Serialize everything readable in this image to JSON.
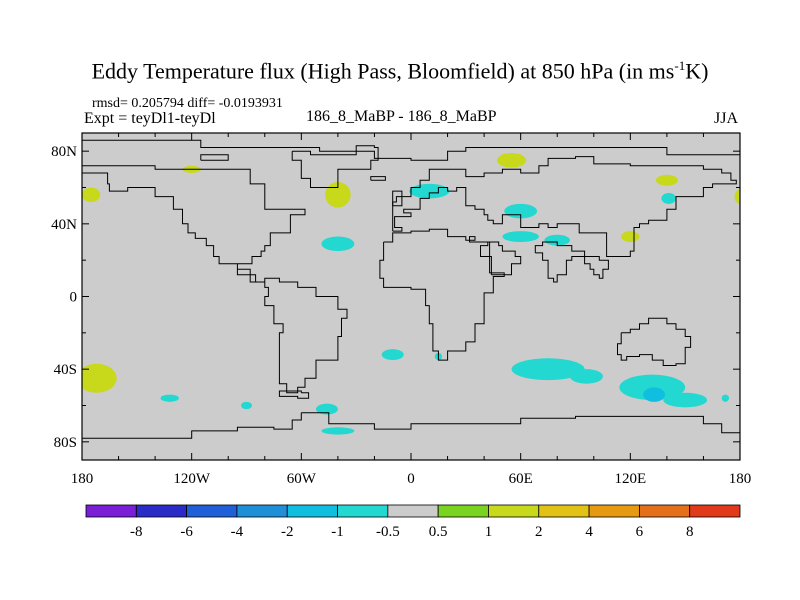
{
  "header": {
    "title_main": "Eddy Temperature flux (High Pass, Bloomfield) at 850 hPa (in ms",
    "title_sup": "-1",
    "title_end": "K)",
    "stats": "rmsd= 0.205794 diff= -0.0193931",
    "expt": "Expt = teyDl1-teyDl",
    "runs": "186_8_MaBP - 186_8_MaBP",
    "season": "JJA"
  },
  "chart_data": {
    "type": "contour-map",
    "title": "Eddy Temperature flux (High Pass, Bloomfield) at 850 hPa (in ms-1K)",
    "projection": "cylindrical-equidistant",
    "xlim": [
      -180,
      180
    ],
    "ylim": [
      -90,
      90
    ],
    "x_ticks": [
      {
        "value": -180,
        "label": "180"
      },
      {
        "value": -120,
        "label": "120W"
      },
      {
        "value": -60,
        "label": "60W"
      },
      {
        "value": 0,
        "label": "0"
      },
      {
        "value": 60,
        "label": "60E"
      },
      {
        "value": 120,
        "label": "120E"
      },
      {
        "value": 180,
        "label": "180"
      }
    ],
    "y_ticks": [
      {
        "value": 80,
        "label": "80N"
      },
      {
        "value": 40,
        "label": "40N"
      },
      {
        "value": 0,
        "label": "0"
      },
      {
        "value": -40,
        "label": "40S"
      },
      {
        "value": -80,
        "label": "80S"
      }
    ],
    "colorbar": {
      "colors": [
        "#7a1fd6",
        "#2b2bc8",
        "#1f5fd8",
        "#1f8fd8",
        "#10bfe0",
        "#22d8d0",
        "#cccccc",
        "#7ad31f",
        "#c8d81a",
        "#e2c215",
        "#e59a12",
        "#e5701a",
        "#e03a1a"
      ],
      "labels": [
        "-8",
        "-6",
        "-4",
        "-2",
        "-1",
        "-0.5",
        "0.5",
        "1",
        "2",
        "4",
        "6",
        "8"
      ]
    },
    "background_color": "#cccccc",
    "anomaly_patches": [
      {
        "lon": 55,
        "lat": 75,
        "rlon": 8,
        "rlat": 4,
        "level": "1"
      },
      {
        "lon": -120,
        "lat": 70,
        "rlon": 5,
        "rlat": 2,
        "level": "1"
      },
      {
        "lon": -175,
        "lat": 56,
        "rlon": 5,
        "rlat": 4,
        "level": "1"
      },
      {
        "lon": -40,
        "lat": 56,
        "rlon": 7,
        "rlat": 7,
        "level": "1"
      },
      {
        "lon": 10,
        "lat": 58,
        "rlon": 11,
        "rlat": 4,
        "level": "-0.5"
      },
      {
        "lon": 60,
        "lat": 47,
        "rlon": 9,
        "rlat": 4,
        "level": "-0.5"
      },
      {
        "lon": 60,
        "lat": 33,
        "rlon": 10,
        "rlat": 3,
        "level": "-0.5"
      },
      {
        "lon": 80,
        "lat": 31,
        "rlon": 7,
        "rlat": 3,
        "level": "-0.5"
      },
      {
        "lon": -40,
        "lat": 29,
        "rlon": 9,
        "rlat": 4,
        "level": "-0.5"
      },
      {
        "lon": 140,
        "lat": 64,
        "rlon": 6,
        "rlat": 3,
        "level": "1"
      },
      {
        "lon": 141,
        "lat": 54,
        "rlon": 4,
        "rlat": 3,
        "level": "-0.5"
      },
      {
        "lon": 120,
        "lat": 33,
        "rlon": 5,
        "rlat": 3,
        "level": "1"
      },
      {
        "lon": 180,
        "lat": 55,
        "rlon": 3,
        "rlat": 4,
        "level": "1"
      },
      {
        "lon": -172,
        "lat": -45,
        "rlon": 11,
        "rlat": 8,
        "level": "1"
      },
      {
        "lon": -10,
        "lat": -32,
        "rlon": 6,
        "rlat": 3,
        "level": "-0.5"
      },
      {
        "lon": 15,
        "lat": -33,
        "rlon": 2,
        "rlat": 2,
        "level": "-0.5"
      },
      {
        "lon": 75,
        "lat": -40,
        "rlon": 20,
        "rlat": 6,
        "level": "-0.5"
      },
      {
        "lon": 96,
        "lat": -44,
        "rlon": 9,
        "rlat": 4,
        "level": "-0.5"
      },
      {
        "lon": 132,
        "lat": -50,
        "rlon": 18,
        "rlat": 7,
        "level": "-0.5"
      },
      {
        "lon": 150,
        "lat": -57,
        "rlon": 12,
        "rlat": 4,
        "level": "-0.5"
      },
      {
        "lon": 133,
        "lat": -54,
        "rlon": 6,
        "rlat": 4,
        "level": "-1"
      },
      {
        "lon": -132,
        "lat": -56,
        "rlon": 5,
        "rlat": 2,
        "level": "-0.5"
      },
      {
        "lon": -90,
        "lat": -60,
        "rlon": 3,
        "rlat": 2,
        "level": "-0.5"
      },
      {
        "lon": -46,
        "lat": -62,
        "rlon": 6,
        "rlat": 3,
        "level": "-0.5"
      },
      {
        "lon": -40,
        "lat": -74,
        "rlon": 9,
        "rlat": 2,
        "level": "-0.5"
      },
      {
        "lon": 172,
        "lat": -56,
        "rlon": 2,
        "rlat": 2,
        "level": "-0.5"
      }
    ],
    "outlines": [
      [
        [
          -180,
          86
        ],
        [
          -115,
          86
        ],
        [
          -115,
          82
        ],
        [
          -60,
          82
        ],
        [
          -50,
          80
        ],
        [
          -20,
          76
        ],
        [
          0,
          75
        ],
        [
          20,
          80
        ],
        [
          30,
          82
        ],
        [
          90,
          82
        ],
        [
          140,
          78
        ],
        [
          180,
          75
        ]
      ],
      [
        [
          -180,
          72
        ],
        [
          -150,
          72
        ],
        [
          -140,
          70
        ],
        [
          -110,
          70
        ],
        [
          -95,
          70
        ],
        [
          -88,
          62
        ],
        [
          -80,
          58
        ],
        [
          -80,
          48
        ],
        [
          -65,
          48
        ],
        [
          -58,
          45
        ],
        [
          -66,
          35
        ],
        [
          -77,
          28
        ],
        [
          -80,
          25
        ],
        [
          -82,
          22
        ],
        [
          -87,
          18
        ],
        [
          -95,
          15
        ],
        [
          -88,
          8
        ],
        [
          -80,
          5
        ],
        [
          -78,
          0
        ],
        [
          -80,
          -5
        ],
        [
          -75,
          -15
        ],
        [
          -70,
          -20
        ],
        [
          -72,
          -35
        ],
        [
          -72,
          -48
        ],
        [
          -68,
          -53
        ],
        [
          -62,
          -50
        ],
        [
          -58,
          -45
        ],
        [
          -52,
          -35
        ],
        [
          -40,
          -22
        ],
        [
          -38,
          -12
        ],
        [
          -35,
          -7
        ],
        [
          -40,
          0
        ],
        [
          -52,
          5
        ],
        [
          -62,
          8
        ],
        [
          -72,
          10
        ],
        [
          -80,
          8
        ],
        [
          -85,
          12
        ],
        [
          -95,
          18
        ],
        [
          -105,
          22
        ],
        [
          -108,
          28
        ],
        [
          -112,
          32
        ],
        [
          -118,
          35
        ],
        [
          -122,
          40
        ],
        [
          -125,
          48
        ],
        [
          -130,
          55
        ],
        [
          -140,
          60
        ],
        [
          -155,
          58
        ],
        [
          -165,
          62
        ],
        [
          -166,
          68
        ],
        [
          -180,
          70
        ]
      ],
      [
        [
          -10,
          36
        ],
        [
          -5,
          38
        ],
        [
          -9,
          44
        ],
        [
          0,
          46
        ],
        [
          -4,
          48
        ],
        [
          5,
          52
        ],
        [
          5,
          54
        ],
        [
          10,
          57
        ],
        [
          15,
          60
        ],
        [
          20,
          58
        ],
        [
          25,
          60
        ],
        [
          30,
          58
        ],
        [
          30,
          50
        ],
        [
          35,
          48
        ],
        [
          40,
          45
        ],
        [
          42,
          42
        ],
        [
          45,
          40
        ],
        [
          50,
          45
        ],
        [
          60,
          40
        ],
        [
          60,
          38
        ],
        [
          70,
          40
        ],
        [
          75,
          38
        ],
        [
          80,
          40
        ],
        [
          92,
          35
        ],
        [
          100,
          35
        ],
        [
          107,
          22
        ],
        [
          115,
          22
        ],
        [
          120,
          25
        ],
        [
          122,
          32
        ],
        [
          122,
          38
        ],
        [
          125,
          40
        ],
        [
          130,
          42
        ],
        [
          140,
          48
        ],
        [
          145,
          55
        ],
        [
          160,
          60
        ],
        [
          165,
          62
        ],
        [
          178,
          64
        ],
        [
          175,
          68
        ],
        [
          170,
          70
        ],
        [
          160,
          72
        ],
        [
          140,
          72
        ],
        [
          120,
          73
        ],
        [
          100,
          77
        ],
        [
          90,
          76
        ],
        [
          75,
          72
        ],
        [
          70,
          68
        ],
        [
          60,
          70
        ],
        [
          50,
          68
        ],
        [
          40,
          66
        ],
        [
          30,
          70
        ],
        [
          20,
          70
        ],
        [
          10,
          64
        ],
        [
          5,
          60
        ],
        [
          0,
          55
        ],
        [
          -8,
          52
        ],
        [
          -10,
          45
        ],
        [
          -10,
          36
        ]
      ],
      [
        [
          -15,
          30
        ],
        [
          -10,
          35
        ],
        [
          0,
          36
        ],
        [
          10,
          37
        ],
        [
          20,
          33
        ],
        [
          30,
          31
        ],
        [
          35,
          33
        ],
        [
          32,
          30
        ],
        [
          43,
          13
        ],
        [
          51,
          11
        ],
        [
          45,
          2
        ],
        [
          40,
          -5
        ],
        [
          40,
          -15
        ],
        [
          35,
          -25
        ],
        [
          30,
          -30
        ],
        [
          20,
          -35
        ],
        [
          15,
          -30
        ],
        [
          12,
          -15
        ],
        [
          10,
          -5
        ],
        [
          8,
          4
        ],
        [
          0,
          5
        ],
        [
          -8,
          5
        ],
        [
          -15,
          10
        ],
        [
          -17,
          20
        ],
        [
          -15,
          30
        ]
      ],
      [
        [
          44,
          12
        ],
        [
          55,
          18
        ],
        [
          60,
          22
        ],
        [
          57,
          25
        ],
        [
          50,
          28
        ],
        [
          48,
          30
        ],
        [
          42,
          28
        ],
        [
          38,
          22
        ],
        [
          44,
          12
        ]
      ],
      [
        [
          68,
          24
        ],
        [
          72,
          20
        ],
        [
          75,
          10
        ],
        [
          78,
          8
        ],
        [
          80,
          12
        ],
        [
          85,
          20
        ],
        [
          88,
          22
        ],
        [
          92,
          22
        ],
        [
          95,
          18
        ],
        [
          98,
          15
        ],
        [
          100,
          12
        ],
        [
          103,
          10
        ],
        [
          105,
          15
        ],
        [
          108,
          20
        ],
        [
          103,
          22
        ],
        [
          95,
          25
        ],
        [
          88,
          28
        ],
        [
          80,
          30
        ],
        [
          72,
          28
        ],
        [
          68,
          24
        ]
      ],
      [
        [
          115,
          -20
        ],
        [
          120,
          -18
        ],
        [
          125,
          -15
        ],
        [
          130,
          -12
        ],
        [
          136,
          -12
        ],
        [
          140,
          -15
        ],
        [
          145,
          -18
        ],
        [
          150,
          -22
        ],
        [
          153,
          -28
        ],
        [
          150,
          -37
        ],
        [
          145,
          -38
        ],
        [
          138,
          -35
        ],
        [
          132,
          -32
        ],
        [
          125,
          -33
        ],
        [
          118,
          -35
        ],
        [
          115,
          -32
        ],
        [
          113,
          -26
        ],
        [
          115,
          -20
        ]
      ],
      [
        [
          -60,
          -64
        ],
        [
          -45,
          -70
        ],
        [
          -20,
          -73
        ],
        [
          0,
          -70
        ],
        [
          30,
          -70
        ],
        [
          60,
          -67
        ],
        [
          90,
          -66
        ],
        [
          110,
          -66
        ],
        [
          130,
          -66
        ],
        [
          160,
          -70
        ],
        [
          170,
          -75
        ],
        [
          180,
          -78
        ]
      ],
      [
        [
          -180,
          -78
        ],
        [
          -150,
          -78
        ],
        [
          -120,
          -74
        ],
        [
          -95,
          -72
        ],
        [
          -75,
          -73
        ],
        [
          -65,
          -68
        ],
        [
          -60,
          -64
        ]
      ],
      [
        [
          -60,
          -53
        ],
        [
          -56,
          -56
        ],
        [
          -62,
          -55
        ],
        [
          -68,
          -55
        ],
        [
          -72,
          -52
        ],
        [
          -60,
          -53
        ]
      ],
      [
        [
          -65,
          80
        ],
        [
          -55,
          78
        ],
        [
          -30,
          83
        ],
        [
          -20,
          82
        ],
        [
          -18,
          75
        ],
        [
          -22,
          70
        ],
        [
          -40,
          60
        ],
        [
          -48,
          60
        ],
        [
          -55,
          65
        ],
        [
          -60,
          75
        ],
        [
          -65,
          80
        ]
      ],
      [
        [
          -22,
          64
        ],
        [
          -14,
          64
        ],
        [
          -14,
          66
        ],
        [
          -22,
          66
        ],
        [
          -22,
          64
        ]
      ],
      [
        [
          -10,
          50
        ],
        [
          -5,
          50
        ],
        [
          -5,
          58
        ],
        [
          -10,
          58
        ],
        [
          -10,
          50
        ]
      ],
      [
        [
          -115,
          75
        ],
        [
          -100,
          75
        ],
        [
          -100,
          78
        ],
        [
          -115,
          78
        ],
        [
          -115,
          75
        ]
      ]
    ]
  }
}
